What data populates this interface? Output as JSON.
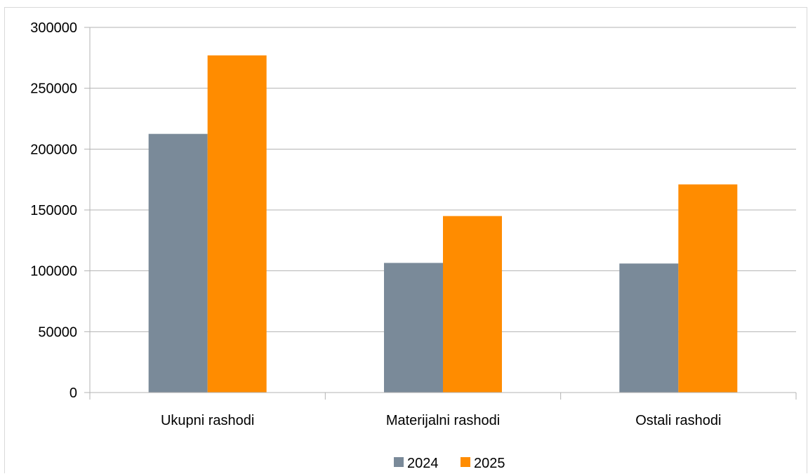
{
  "chart_data": {
    "type": "bar",
    "categories": [
      "Ukupni rashodi",
      "Materijalni rashodi",
      "Ostali rashodi"
    ],
    "series": [
      {
        "name": "2024",
        "values": [
          212500,
          106500,
          106000
        ],
        "color": "#7a8a99"
      },
      {
        "name": "2025",
        "values": [
          277000,
          145000,
          171000
        ],
        "color": "#ff8c00"
      }
    ],
    "title": "",
    "xlabel": "",
    "ylabel": "",
    "ylim": [
      0,
      300000
    ],
    "yticks": [
      0,
      50000,
      100000,
      150000,
      200000,
      250000,
      300000
    ],
    "ytick_labels": [
      "0",
      "50000",
      "100000",
      "150000",
      "200000",
      "250000",
      "300000"
    ],
    "grid": true,
    "legend_position": "bottom-center"
  }
}
